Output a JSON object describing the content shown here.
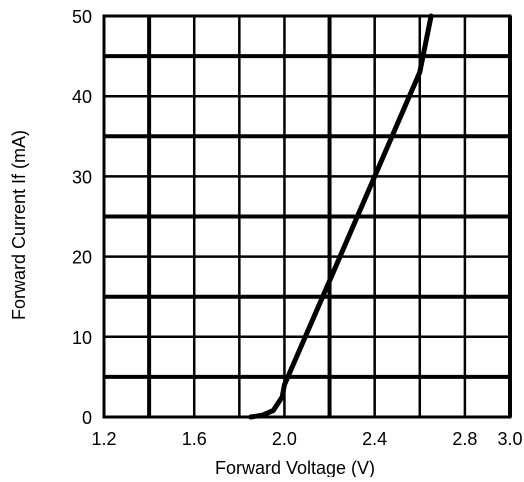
{
  "chart_data": {
    "type": "line",
    "title": "",
    "xlabel": "Forward Voltage (V)",
    "ylabel": "Forward Current If (mA)",
    "xlim": [
      1.2,
      3.0
    ],
    "ylim": [
      0,
      50
    ],
    "x_ticks": [
      "1.2",
      "1.6",
      "2.0",
      "2.4",
      "2.8",
      "3.0"
    ],
    "y_ticks": [
      "0",
      "10",
      "20",
      "30",
      "40",
      "50"
    ],
    "grid": true,
    "legend": "none",
    "series": [
      {
        "points": [
          {
            "x": 1.85,
            "y": 0
          },
          {
            "x": 1.9,
            "y": 0.2
          },
          {
            "x": 1.95,
            "y": 0.8
          },
          {
            "x": 1.99,
            "y": 2.5
          },
          {
            "x": 2.0,
            "y": 4
          },
          {
            "x": 2.2,
            "y": 17
          },
          {
            "x": 2.4,
            "y": 30
          },
          {
            "x": 2.6,
            "y": 43
          },
          {
            "x": 2.65,
            "y": 50
          }
        ]
      }
    ]
  },
  "colors": {
    "line": "#000000",
    "grid": "#000000",
    "background": "#ffffff"
  }
}
